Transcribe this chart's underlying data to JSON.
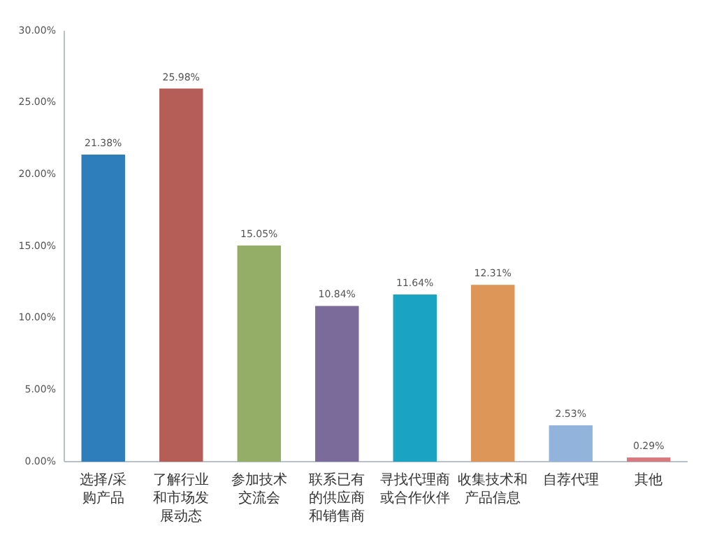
{
  "chart_data": {
    "type": "bar",
    "categories": [
      "选择/采购产品",
      "了解行业和市场发展动态",
      "参加技术交流会",
      "联系已有的供应商和销售商",
      "寻找代理商或合作伙伴",
      "收集技术和产品信息",
      "自荐代理",
      "其他"
    ],
    "values": [
      21.38,
      25.98,
      15.05,
      10.84,
      11.64,
      12.31,
      2.53,
      0.29
    ],
    "value_labels": [
      "21.38%",
      "25.98%",
      "15.05%",
      "10.84%",
      "11.64%",
      "12.31%",
      "2.53%",
      "0.29%"
    ],
    "colors": [
      "#2e7ebc",
      "#b55e58",
      "#94ad67",
      "#7a6b9b",
      "#1ba3c4",
      "#de9558",
      "#92b4dc",
      "#d67a80"
    ],
    "ylim": [
      0,
      30
    ],
    "yticks": [
      {
        "value": 0,
        "label": "0.00%"
      },
      {
        "value": 5,
        "label": "5.00%"
      },
      {
        "value": 10,
        "label": "10.00%"
      },
      {
        "value": 15,
        "label": "15.00%"
      },
      {
        "value": 20,
        "label": "20.00%"
      },
      {
        "value": 25,
        "label": "25.00%"
      },
      {
        "value": 30,
        "label": "30.00%"
      }
    ],
    "grid": false
  }
}
